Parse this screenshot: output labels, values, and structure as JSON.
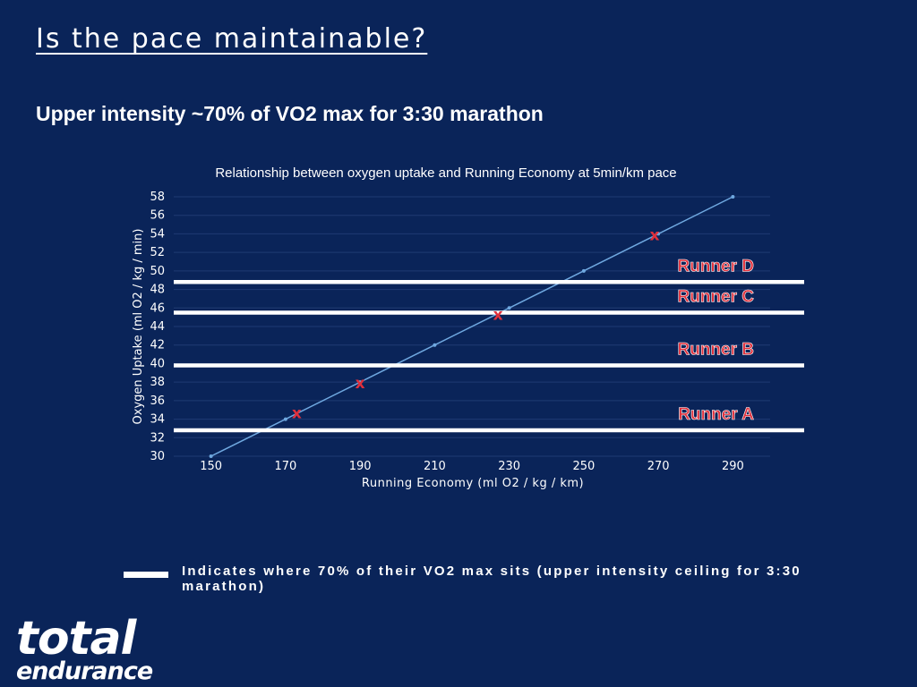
{
  "page": {
    "title": "Is the pace maintainable?",
    "subtitle": "Upper intensity ~70% of VO2 max for 3:30 marathon",
    "legend_text": "Indicates where 70% of their VO2 max sits (upper intensity ceiling for 3:30 marathon)",
    "logo_line1": "total",
    "logo_line2": "endurance"
  },
  "colors": {
    "background": "#0a2459",
    "line": "#6fa8e0",
    "marker": "#e0303c",
    "runner_label": "#e0303c",
    "threshold": "#ffffff",
    "grid": "#1f3a73"
  },
  "chart_data": {
    "type": "line",
    "title": "Relationship between oxygen uptake and Running Economy at 5min/km pace",
    "xlabel": "Running Economy (ml O2 / kg / km)",
    "ylabel": "Oxygen Uptake (ml O2 / kg / min)",
    "xlim": [
      140,
      300
    ],
    "ylim": [
      30,
      58
    ],
    "xticks": [
      150,
      170,
      190,
      210,
      230,
      250,
      270,
      290
    ],
    "yticks": [
      30,
      32,
      34,
      36,
      38,
      40,
      42,
      44,
      46,
      48,
      50,
      52,
      54,
      56,
      58
    ],
    "grid": true,
    "series": [
      {
        "name": "Oxygen Uptake",
        "x": [
          150,
          170,
          190,
          210,
          230,
          250,
          270,
          290
        ],
        "y": [
          30,
          34,
          38,
          42,
          46,
          50,
          54,
          58
        ]
      }
    ],
    "runners": [
      {
        "label": "Runner A",
        "marker_x": 173,
        "marker_y": 34.6,
        "threshold_y": 32.8
      },
      {
        "label": "Runner B",
        "marker_x": 190,
        "marker_y": 37.8,
        "threshold_y": 39.8
      },
      {
        "label": "Runner C",
        "marker_x": 227,
        "marker_y": 45.2,
        "threshold_y": 45.5
      },
      {
        "label": "Runner D",
        "marker_x": 269,
        "marker_y": 53.8,
        "threshold_y": 48.8
      }
    ],
    "marker_symbol": "x"
  }
}
